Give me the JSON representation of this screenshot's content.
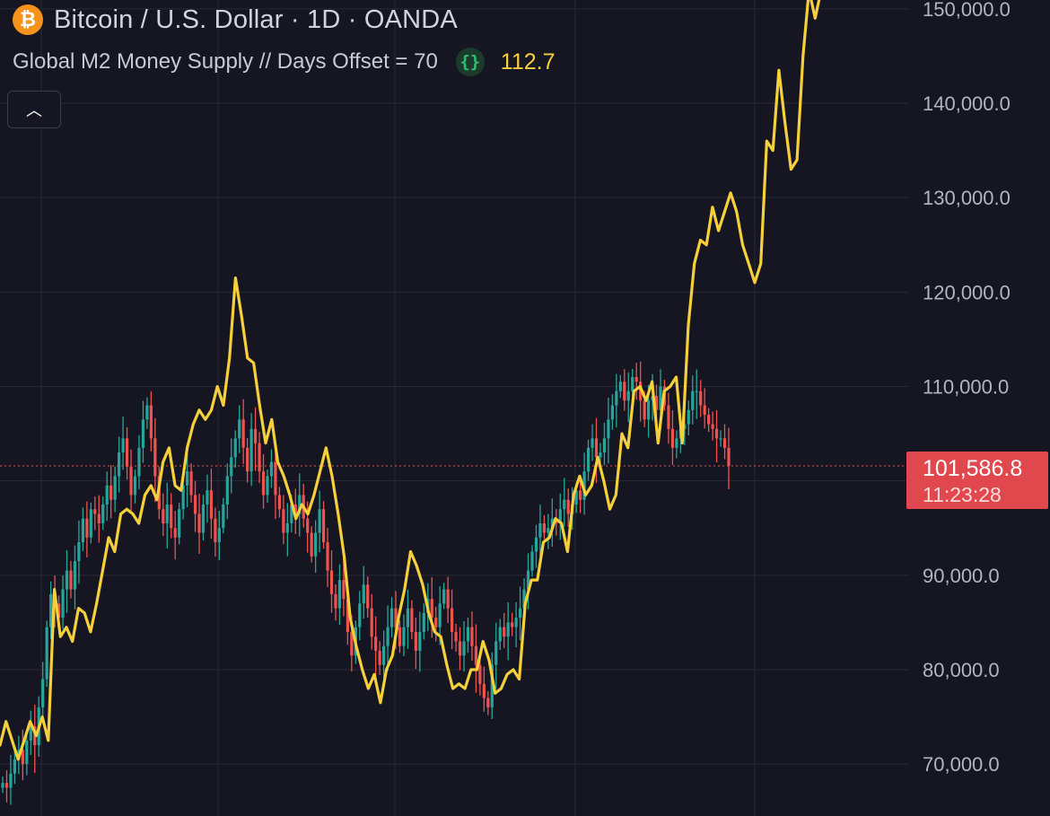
{
  "header": {
    "symbol_title": "Bitcoin / U.S. Dollar · 1D · OANDA",
    "btc_icon": "bitcoin-icon",
    "indicator_name": "Global M2 Money Supply // Days Offset = 70",
    "indicator_icon": "code-braces-icon",
    "indicator_icon_glyph": "{}",
    "indicator_value": "112.7",
    "collapse_icon": "chevron-up-icon",
    "collapse_glyph": "︿"
  },
  "price_badge": {
    "price": "101,586.8",
    "countdown": "11:23:28"
  },
  "colors": {
    "background": "#161622",
    "up": "#26a69a",
    "down": "#ef5350",
    "m2_line": "#f5d03b",
    "badge": "#e0484e",
    "grid": "#262a36",
    "axis_text": "#b2b5be"
  },
  "chart_data": {
    "type": "line",
    "ylim": [
      65000,
      152000
    ],
    "grid": true,
    "yaxis_ticks": [
      {
        "value": 70000,
        "label": "70,000.0"
      },
      {
        "value": 80000,
        "label": "80,000.0"
      },
      {
        "value": 90000,
        "label": "90,000.0"
      },
      {
        "value": 110000,
        "label": "110,000.0"
      },
      {
        "value": 120000,
        "label": "120,000.0"
      },
      {
        "value": 130000,
        "label": "130,000.0"
      },
      {
        "value": 140000,
        "label": "140,000.0"
      },
      {
        "value": 150000,
        "label": "150,000.0"
      }
    ],
    "current_price": 101586.8,
    "series": [
      {
        "kind": "candlestick",
        "closes": [
          68000,
          67500,
          69000,
          70500,
          71500,
          70000,
          72500,
          74000,
          72000,
          76000,
          79000,
          84500,
          88000,
          87000,
          85500,
          88500,
          90500,
          88500,
          91500,
          93500,
          96000,
          94000,
          97000,
          96500,
          95500,
          97500,
          99500,
          98000,
          100500,
          103000,
          104500,
          101500,
          98500,
          100500,
          103500,
          106500,
          108000,
          104500,
          100500,
          97000,
          95500,
          97500,
          95000,
          94000,
          97000,
          99500,
          101000,
          98500,
          96500,
          94500,
          97500,
          99000,
          96000,
          93500,
          95000,
          97500,
          100500,
          102500,
          104500,
          106500,
          103500,
          101000,
          105500,
          104000,
          101000,
          98500,
          100500,
          102000,
          98500,
          97000,
          94500,
          95500,
          97500,
          96500,
          98500,
          96000,
          94500,
          92000,
          94500,
          97000,
          93500,
          90500,
          88000,
          86500,
          89500,
          87500,
          84000,
          81500,
          84500,
          87000,
          89000,
          86500,
          83500,
          82000,
          80500,
          82500,
          84500,
          86500,
          84500,
          82500,
          84500,
          86500,
          84000,
          82000,
          84000,
          86000,
          87500,
          85500,
          84500,
          87000,
          88500,
          86500,
          84000,
          83000,
          81500,
          83000,
          84500,
          82500,
          80500,
          78500,
          77000,
          76000,
          80500,
          83000,
          84500,
          83500,
          85000,
          84500,
          85500,
          86500,
          88500,
          90500,
          92500,
          94000,
          95500,
          94500,
          95000,
          96000,
          95500,
          97000,
          98000,
          96500,
          97500,
          99000,
          98000,
          101000,
          103500,
          104500,
          102500,
          103000,
          104500,
          106500,
          108000,
          109500,
          110500,
          108500,
          109500,
          111000,
          110500,
          108500,
          106500,
          108500,
          109000,
          107500,
          110000,
          108000,
          105500,
          103500,
          104500,
          105500,
          106000,
          107500,
          109500,
          109500,
          108000,
          107000,
          106000,
          105500,
          104500,
          104500,
          103500,
          101586
        ]
      },
      {
        "name": "Global M2 Money Supply // Days Offset = 70",
        "kind": "line",
        "values": [
          72000,
          74500,
          72500,
          70500,
          72500,
          74500,
          73000,
          75000,
          72500,
          88500,
          83500,
          84500,
          83000,
          86500,
          86000,
          84000,
          87000,
          90500,
          94000,
          92500,
          96500,
          97000,
          96500,
          95500,
          98500,
          99500,
          98000,
          102000,
          103500,
          99500,
          99000,
          103500,
          106000,
          107500,
          106500,
          107500,
          110000,
          108000,
          113000,
          121500,
          117500,
          113000,
          112500,
          108000,
          104000,
          106500,
          102000,
          100500,
          98500,
          96000,
          97500,
          96500,
          98500,
          101000,
          103500,
          100500,
          96500,
          92000,
          85500,
          82500,
          80000,
          78000,
          79500,
          76500,
          80000,
          81500,
          85500,
          88500,
          92500,
          91000,
          89000,
          86000,
          84000,
          83500,
          80500,
          78000,
          78500,
          78000,
          80000,
          80000,
          83000,
          81000,
          77500,
          78000,
          79500,
          80000,
          79000,
          87000,
          89500,
          89500,
          93500,
          94000,
          96000,
          95500,
          92500,
          98500,
          100500,
          98500,
          99500,
          102500,
          100000,
          97000,
          98500,
          105000,
          103500,
          109500,
          110000,
          108500,
          110500,
          104000,
          109500,
          110000,
          111000,
          104000,
          116500,
          123000,
          125500,
          125000,
          129000,
          126500,
          128500,
          130500,
          128500,
          125000,
          123000,
          121000,
          123000,
          136000,
          135000,
          143500,
          138000,
          133000,
          134000,
          145000,
          152000,
          149000,
          152000
        ]
      }
    ]
  }
}
